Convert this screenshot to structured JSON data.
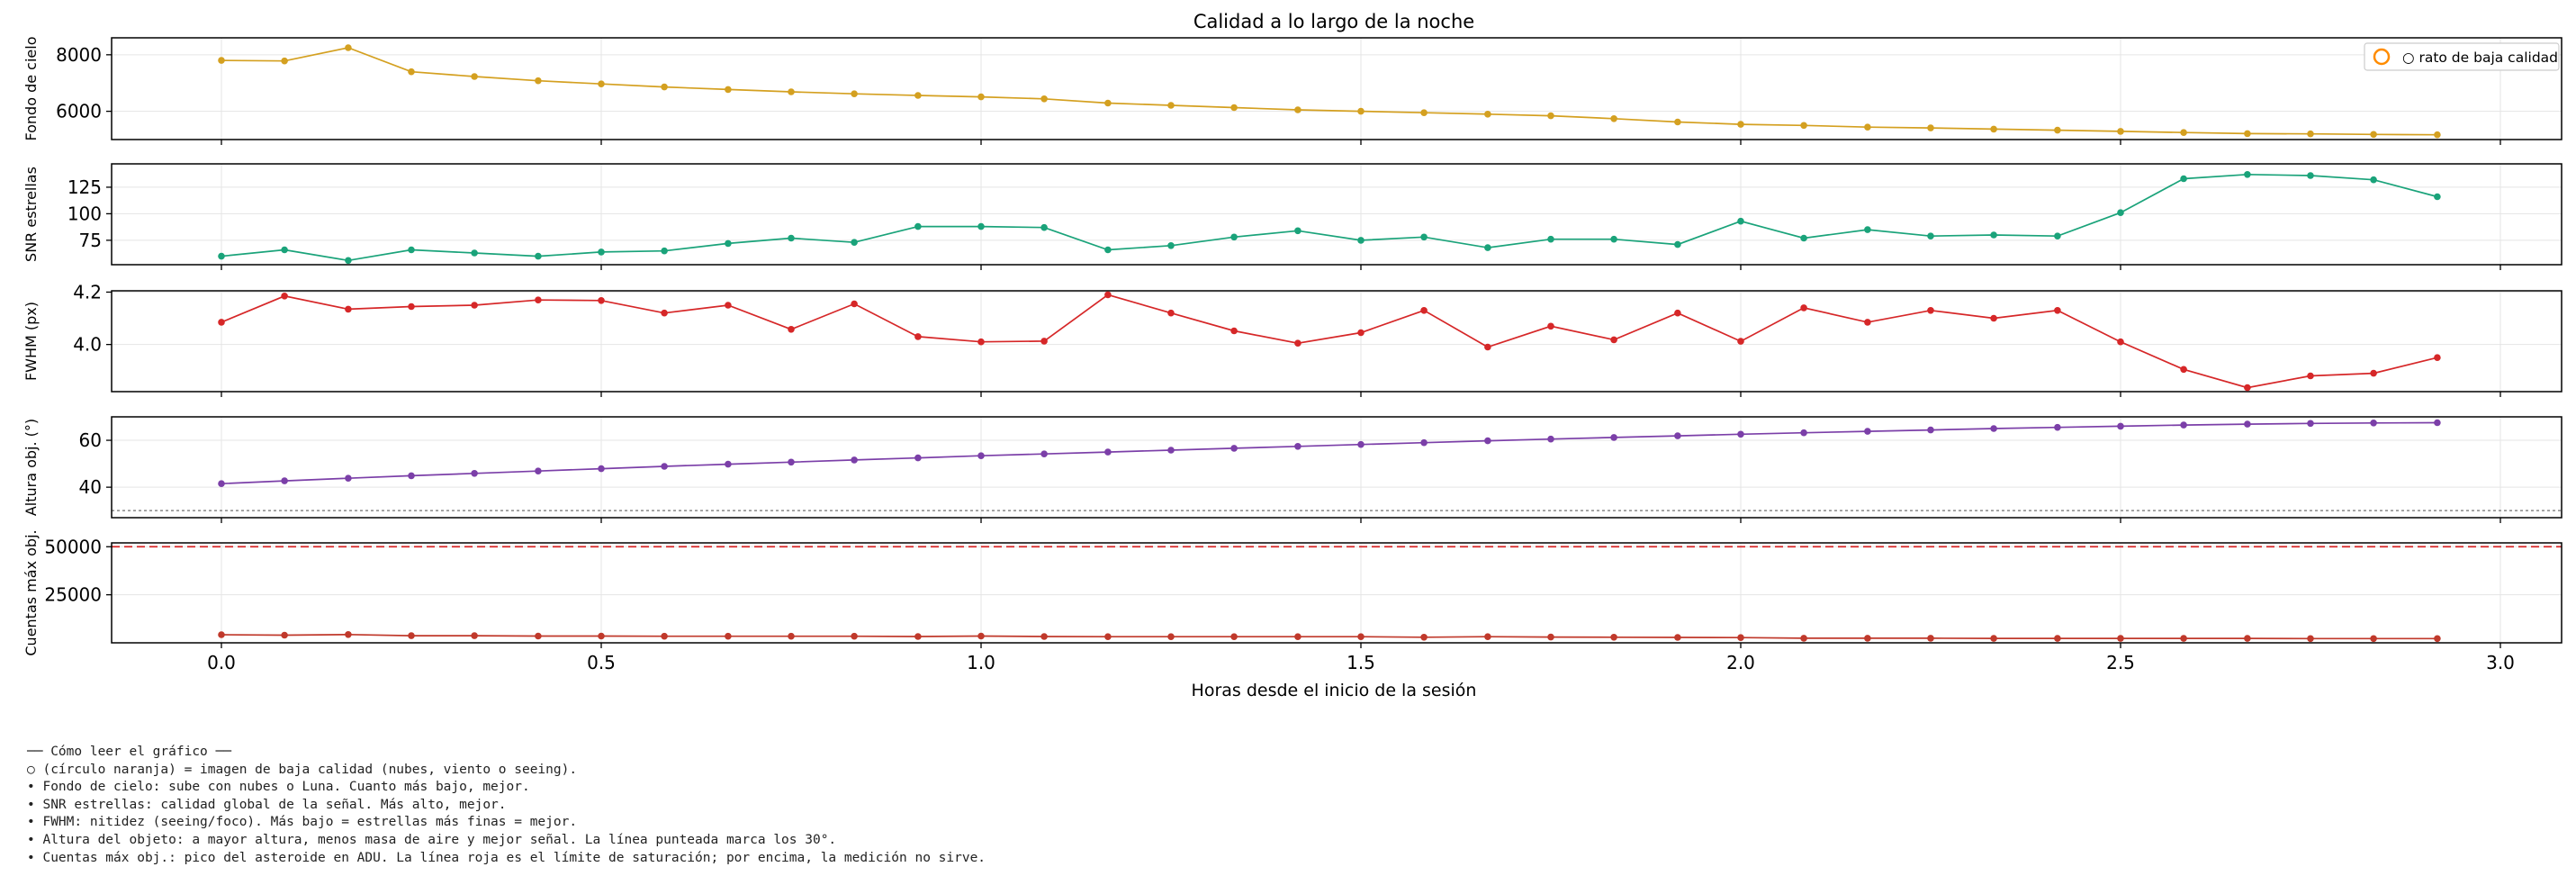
{
  "figure_title": "Calidad a lo largo de la noche",
  "legend_label": "○ rato de baja calidad",
  "xlabel": "Horas desde el inicio de la sesión",
  "x_ticks": [
    "0.0",
    "0.5",
    "1.0",
    "1.5",
    "2.0",
    "2.5",
    "3.0"
  ],
  "colors": {
    "sky": "#d4a020",
    "snr": "#1aa37a",
    "fwhm": "#d62728",
    "alt": "#7b3fa8",
    "peak": "#c0392b",
    "saturation_line": "#d62728",
    "threshold_line": "#888888",
    "bad_marker": "#ff8c00"
  },
  "chart_data": [
    {
      "type": "line",
      "ylabel": "Fondo de cielo",
      "y_ticks": [
        "6000",
        "8000"
      ],
      "ylim": [
        5000,
        8600
      ],
      "x": [
        0.0,
        0.083,
        0.167,
        0.25,
        0.333,
        0.417,
        0.5,
        0.583,
        0.667,
        0.75,
        0.833,
        0.917,
        1.0,
        1.083,
        1.167,
        1.25,
        1.333,
        1.417,
        1.5,
        1.583,
        1.667,
        1.75,
        1.833,
        1.917,
        2.0,
        2.083,
        2.167,
        2.25,
        2.333,
        2.417,
        2.5,
        2.583,
        2.667,
        2.75,
        2.833,
        2.917
      ],
      "values": [
        7800,
        7780,
        8250,
        7400,
        7230,
        7080,
        6970,
        6860,
        6770,
        6690,
        6620,
        6560,
        6510,
        6440,
        6290,
        6210,
        6130,
        6050,
        6000,
        5950,
        5900,
        5840,
        5740,
        5620,
        5540,
        5500,
        5440,
        5410,
        5370,
        5330,
        5290,
        5250,
        5210,
        5200,
        5180,
        5170
      ]
    },
    {
      "type": "line",
      "ylabel": "SNR estrellas",
      "y_ticks": [
        "75",
        "100",
        "125"
      ],
      "ylim": [
        52,
        147
      ],
      "x": [
        0.0,
        0.083,
        0.167,
        0.25,
        0.333,
        0.417,
        0.5,
        0.583,
        0.667,
        0.75,
        0.833,
        0.917,
        1.0,
        1.083,
        1.167,
        1.25,
        1.333,
        1.417,
        1.5,
        1.583,
        1.667,
        1.75,
        1.833,
        1.917,
        2.0,
        2.083,
        2.167,
        2.25,
        2.333,
        2.417,
        2.5,
        2.583,
        2.667,
        2.75,
        2.833,
        2.917
      ],
      "values": [
        60,
        66,
        56,
        66,
        63,
        60,
        64,
        65,
        72,
        77,
        73,
        88,
        88,
        87,
        66,
        70,
        78,
        84,
        75,
        78,
        68,
        76,
        76,
        71,
        93,
        77,
        85,
        79,
        80,
        79,
        101,
        133,
        137,
        136,
        132,
        116
      ]
    },
    {
      "type": "line",
      "ylabel": "FWHM (px)",
      "y_ticks": [
        "4.0",
        "4.2"
      ],
      "ylim": [
        3.82,
        4.205
      ],
      "x": [
        0.0,
        0.083,
        0.167,
        0.25,
        0.333,
        0.417,
        0.5,
        0.583,
        0.667,
        0.75,
        0.833,
        0.917,
        1.0,
        1.083,
        1.167,
        1.25,
        1.333,
        1.417,
        1.5,
        1.583,
        1.667,
        1.75,
        1.833,
        1.917,
        2.0,
        2.083,
        2.167,
        2.25,
        2.333,
        2.417,
        2.5,
        2.583,
        2.667,
        2.75,
        2.833,
        2.917
      ],
      "values": [
        4.085,
        4.185,
        4.135,
        4.145,
        4.15,
        4.17,
        4.168,
        4.12,
        4.15,
        4.058,
        4.155,
        4.03,
        4.01,
        4.013,
        4.19,
        4.12,
        4.052,
        4.005,
        4.045,
        4.13,
        3.99,
        4.07,
        4.018,
        4.12,
        4.012,
        4.14,
        4.085,
        4.13,
        4.1,
        4.13,
        4.01,
        3.905,
        3.835,
        3.88,
        3.89,
        3.95
      ]
    },
    {
      "type": "line",
      "ylabel": "Altura obj. (°)",
      "y_ticks": [
        "40",
        "60"
      ],
      "ylim": [
        27,
        70
      ],
      "threshold": 30,
      "x": [
        0.0,
        0.083,
        0.167,
        0.25,
        0.333,
        0.417,
        0.5,
        0.583,
        0.667,
        0.75,
        0.833,
        0.917,
        1.0,
        1.083,
        1.167,
        1.25,
        1.333,
        1.417,
        1.5,
        1.583,
        1.667,
        1.75,
        1.833,
        1.917,
        2.0,
        2.083,
        2.167,
        2.25,
        2.333,
        2.417,
        2.5,
        2.583,
        2.667,
        2.75,
        2.833,
        2.917
      ],
      "values": [
        41.5,
        42.7,
        43.8,
        44.9,
        45.9,
        46.9,
        47.9,
        48.9,
        49.8,
        50.7,
        51.6,
        52.5,
        53.4,
        54.2,
        55.0,
        55.8,
        56.6,
        57.4,
        58.2,
        59.0,
        59.8,
        60.5,
        61.2,
        61.9,
        62.6,
        63.2,
        63.8,
        64.4,
        65.0,
        65.5,
        66.0,
        66.5,
        66.9,
        67.2,
        67.4,
        67.5
      ]
    },
    {
      "type": "line",
      "ylabel": "Cuentas máx obj.",
      "y_ticks": [
        "25000",
        "50000"
      ],
      "ylim": [
        0,
        52000
      ],
      "saturation": 50000,
      "x": [
        0.0,
        0.083,
        0.167,
        0.25,
        0.333,
        0.417,
        0.5,
        0.583,
        0.667,
        0.75,
        0.833,
        0.917,
        1.0,
        1.083,
        1.167,
        1.25,
        1.333,
        1.417,
        1.5,
        1.583,
        1.667,
        1.75,
        1.833,
        1.917,
        2.0,
        2.083,
        2.167,
        2.25,
        2.333,
        2.417,
        2.5,
        2.583,
        2.667,
        2.75,
        2.833,
        2.917
      ],
      "values": [
        4200,
        4000,
        4300,
        3700,
        3700,
        3500,
        3500,
        3400,
        3400,
        3400,
        3400,
        3300,
        3500,
        3300,
        3200,
        3200,
        3200,
        3200,
        3200,
        2900,
        3200,
        3000,
        2900,
        2800,
        2700,
        2400,
        2400,
        2400,
        2300,
        2300,
        2300,
        2300,
        2300,
        2200,
        2200,
        2200
      ]
    }
  ],
  "notes": [
    "── Cómo leer el gráfico ──",
    "○ (círculo naranja) = imagen de baja calidad (nubes, viento o seeing).",
    "• Fondo de cielo: sube con nubes o Luna. Cuanto más bajo, mejor.",
    "• SNR estrellas: calidad global de la señal. Más alto, mejor.",
    "• FWHM: nitidez (seeing/foco). Más bajo = estrellas más finas = mejor.",
    "• Altura del objeto: a mayor altura, menos masa de aire y mejor señal. La línea punteada marca los 30°.",
    "• Cuentas máx obj.: pico del asteroide en ADU. La línea roja es el límite de saturación; por encima, la medición no sirve."
  ]
}
